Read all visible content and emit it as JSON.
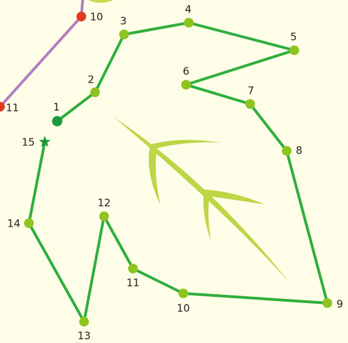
{
  "puzzle": {
    "dots": [
      {
        "label": "1"
      },
      {
        "label": "2"
      },
      {
        "label": "3"
      },
      {
        "label": "4"
      },
      {
        "label": "5"
      },
      {
        "label": "6"
      },
      {
        "label": "7"
      },
      {
        "label": "8"
      },
      {
        "label": "9"
      },
      {
        "label": "10"
      },
      {
        "label": "11"
      },
      {
        "label": "12"
      },
      {
        "label": "13"
      },
      {
        "label": "14"
      },
      {
        "label": "15"
      }
    ],
    "neighbor_dots": [
      {
        "label": "10"
      },
      {
        "label": "11"
      }
    ]
  }
}
